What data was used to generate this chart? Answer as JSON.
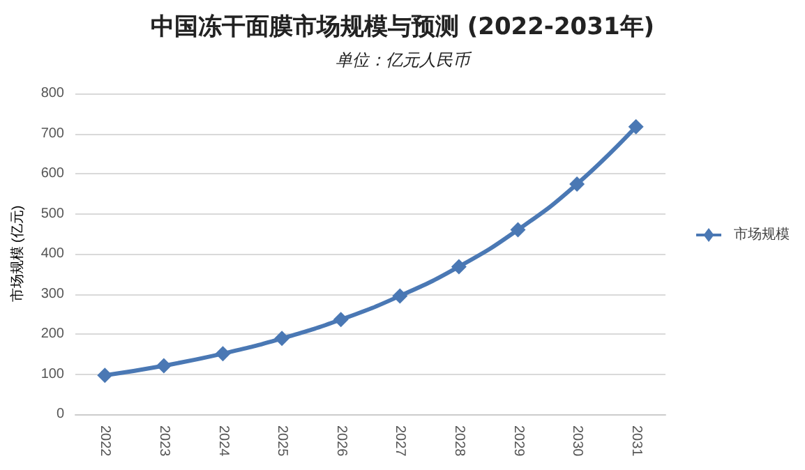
{
  "chart_data": {
    "type": "line",
    "title": "中国冻干面膜市场规模与预测 (2022-2031年)",
    "subtitle": "单位：亿元人民币",
    "ylabel": "市场规模 (亿元)",
    "categories": [
      "2022",
      "2023",
      "2024",
      "2025",
      "2026",
      "2027",
      "2028",
      "2029",
      "2030",
      "2031"
    ],
    "series": [
      {
        "name": "市场规模",
        "color": "#4a78b4",
        "values": [
          97,
          121,
          151,
          189,
          236,
          295,
          368,
          460,
          574,
          717
        ]
      }
    ],
    "ylim": [
      0,
      800
    ],
    "yticks": [
      0,
      100,
      200,
      300,
      400,
      500,
      600,
      700,
      800
    ],
    "grid": "y",
    "legend": "right",
    "marker": "diamond",
    "line_style": "solid"
  }
}
